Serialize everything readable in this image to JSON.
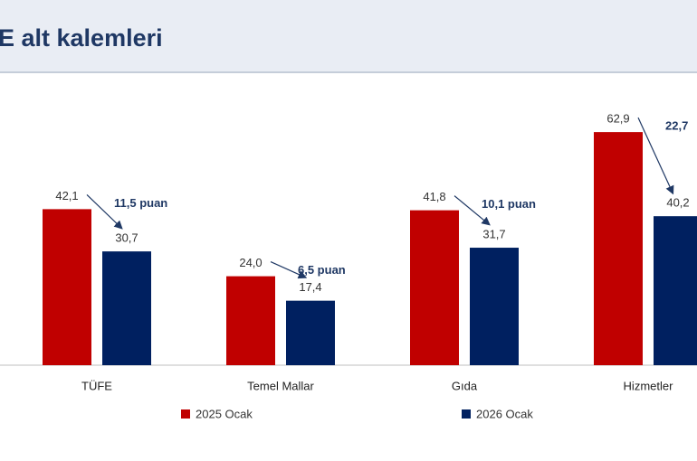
{
  "chart_data": {
    "type": "bar",
    "title": "E alt kalemleri",
    "categories": [
      "TÜFE",
      "Temel Mallar",
      "Gıda",
      "Hizmetler"
    ],
    "series": [
      {
        "name": "2025 Ocak",
        "color": "#c00000",
        "values": [
          42.1,
          24.0,
          41.8,
          62.9
        ],
        "value_labels": [
          "42,1",
          "24,0",
          "41,8",
          "62,9"
        ]
      },
      {
        "name": "2026 Ocak",
        "color": "#002060",
        "values": [
          30.7,
          17.4,
          31.7,
          40.2
        ],
        "value_labels": [
          "30,7",
          "17,4",
          "31,7",
          "40,2"
        ]
      }
    ],
    "annotations": [
      "11,5 puan",
      "6,5 puan",
      "10,1 puan",
      "22,7"
    ]
  }
}
